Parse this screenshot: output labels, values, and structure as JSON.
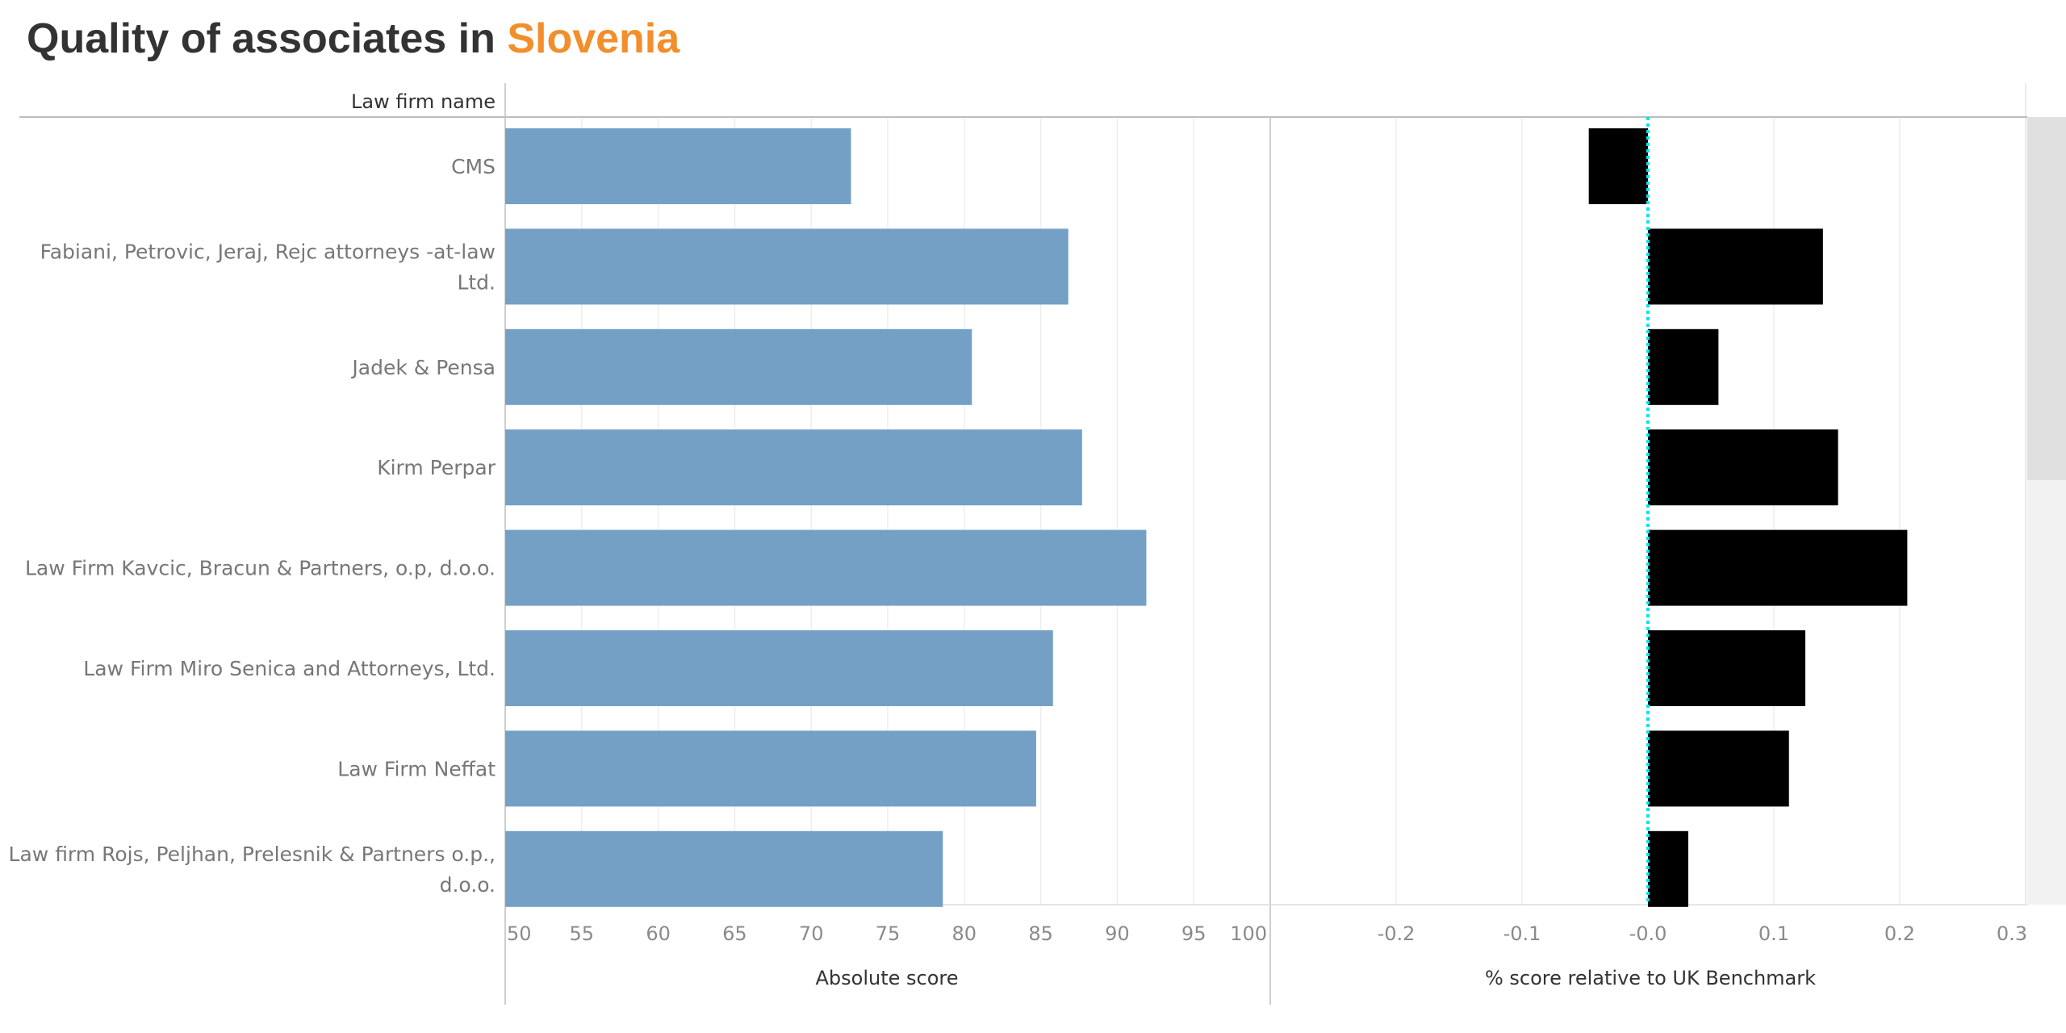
{
  "title": {
    "prefix": "Quality of associates in ",
    "highlight": "Slovenia"
  },
  "row_header": "Law firm name",
  "colors": {
    "bar": "#74a0c6",
    "relative_bar": "#000000",
    "zero_line": "#00e5ee",
    "title_highlight": "#f28e2b"
  },
  "chart_data": [
    {
      "type": "bar",
      "orientation": "horizontal",
      "categories": [
        [
          "CMS"
        ],
        [
          "Fabiani, Petrovic, Jeraj, Rejc attorneys -at-law",
          "Ltd."
        ],
        [
          "Jadek & Pensa"
        ],
        [
          "Kirm Perpar"
        ],
        [
          "Law Firm Kavcic, Bracun & Partners, o.p, d.o.o."
        ],
        [
          "Law Firm Miro Senica and Attorneys, Ltd."
        ],
        [
          "Law Firm Neffat"
        ],
        [
          "Law firm Rojs, Peljhan, Prelesnik & Partners o.p.,",
          "d.o.o."
        ]
      ],
      "values": [
        72.6,
        86.8,
        80.5,
        87.7,
        91.9,
        85.8,
        84.7,
        78.6
      ],
      "xlabel": "Absolute score",
      "xlim": [
        50,
        100
      ],
      "ticks": [
        "50",
        "55",
        "60",
        "65",
        "70",
        "75",
        "80",
        "85",
        "90",
        "95",
        "100"
      ],
      "grid": true
    },
    {
      "type": "bar",
      "orientation": "horizontal",
      "values": [
        -0.047,
        0.139,
        0.056,
        0.151,
        0.206,
        0.125,
        0.112,
        0.032
      ],
      "xlabel": "% score relative to UK Benchmark",
      "xlim": [
        -0.3,
        0.3
      ],
      "ticks": [
        {
          "value": -0.2,
          "label": "-0.2"
        },
        {
          "value": -0.1,
          "label": "-0.1"
        },
        {
          "value": 0.0,
          "label": "-0.0"
        },
        {
          "value": 0.1,
          "label": "0.1"
        },
        {
          "value": 0.2,
          "label": "0.2"
        },
        {
          "value": 0.3,
          "label": "0.3"
        }
      ],
      "reference_line": 0,
      "grid": true
    }
  ]
}
